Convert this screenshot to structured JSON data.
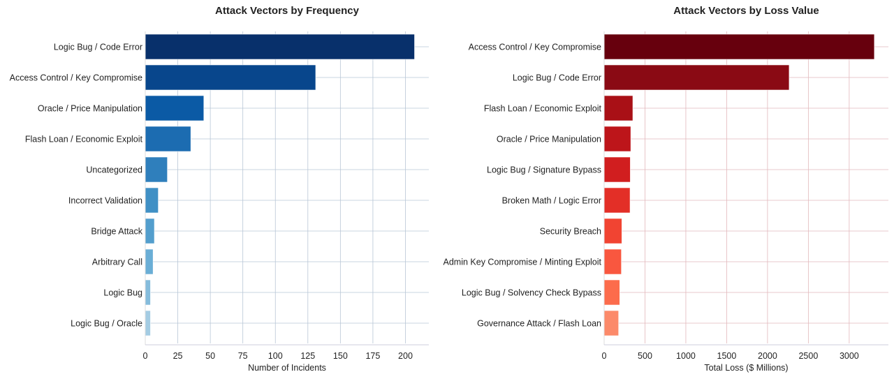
{
  "chart_data": [
    {
      "type": "bar",
      "orientation": "horizontal",
      "title": "Attack Vectors by Frequency",
      "xlabel": "Number of Incidents",
      "ylabel": "",
      "categories": [
        "Logic Bug / Code Error",
        "Access Control / Key Compromise",
        "Oracle / Price Manipulation",
        "Flash Loan / Economic Exploit",
        "Uncategorized",
        "Incorrect Validation",
        "Bridge Attack",
        "Arbitrary Call",
        "Logic Bug",
        "Logic Bug / Oracle"
      ],
      "values": [
        207,
        131,
        45,
        35,
        17,
        10,
        7,
        6,
        4,
        4
      ],
      "xlim": [
        0,
        218
      ],
      "xticks": [
        0,
        25,
        50,
        75,
        100,
        125,
        150,
        175,
        200
      ],
      "grid": true,
      "colors": [
        "#08306b",
        "#08468c",
        "#0b5aa5",
        "#1c6cb1",
        "#2f7fbc",
        "#4090c5",
        "#539ecd",
        "#6aaed6",
        "#85bcdc",
        "#a4cce3"
      ]
    },
    {
      "type": "bar",
      "orientation": "horizontal",
      "title": "Attack Vectors by Loss Value",
      "xlabel": "Total Loss ($ Millions)",
      "ylabel": "",
      "categories": [
        "Access Control / Key Compromise",
        "Logic Bug / Code Error",
        "Flash Loan / Economic Exploit",
        "Oracle / Price Manipulation",
        "Logic Bug / Signature Bypass",
        "Broken Math / Logic Error",
        "Security Breach",
        "Admin Key Compromise / Minting Exploit",
        "Logic Bug / Solvency Check Bypass",
        "Governance Attack / Flash Loan"
      ],
      "values": [
        3308,
        2265,
        351,
        326,
        320,
        317,
        217,
        211,
        191,
        177
      ],
      "xlim": [
        0,
        3480
      ],
      "xticks": [
        0,
        500,
        1000,
        1500,
        2000,
        2500,
        3000
      ],
      "grid": true,
      "colors": [
        "#67000d",
        "#8a0a14",
        "#a91016",
        "#bd151a",
        "#d11e1f",
        "#e32f27",
        "#f14432",
        "#f9573f",
        "#fc6c4c",
        "#fc8a6a"
      ]
    }
  ]
}
